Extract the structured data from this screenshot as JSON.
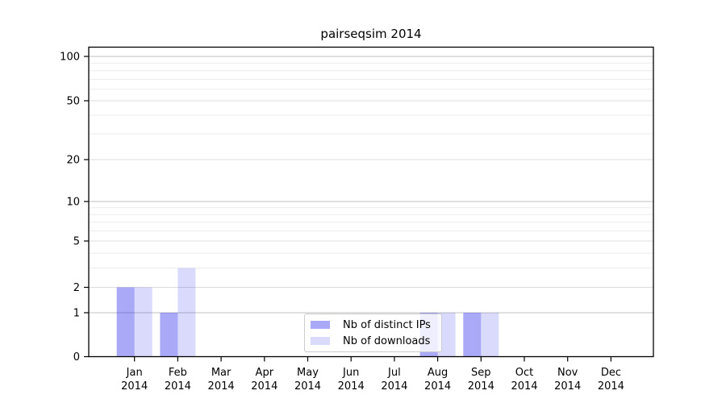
{
  "figure": {
    "title": "pairseqsim 2014"
  },
  "chart_data": {
    "type": "bar",
    "title": "pairseqsim 2014",
    "categories": [
      "Jan",
      "Feb",
      "Mar",
      "Apr",
      "May",
      "Jun",
      "Jul",
      "Aug",
      "Sep",
      "Oct",
      "Nov",
      "Dec"
    ],
    "xtick_year": "2014",
    "series": [
      {
        "name": "Nb of distinct IPs",
        "color": "rgba(10,10,235,0.35)",
        "values": [
          2,
          1,
          0,
          0,
          0,
          0,
          0,
          1,
          1,
          0,
          0,
          0
        ]
      },
      {
        "name": "Nb of downloads",
        "color": "rgba(10,10,235,0.15)",
        "values": [
          2,
          3,
          0,
          0,
          0,
          0,
          0,
          1,
          1,
          0,
          0,
          0
        ]
      }
    ],
    "yscale": "log1p",
    "yticks": [
      0,
      1,
      2,
      5,
      10,
      20,
      50,
      100
    ],
    "minor_yticks": [
      3,
      4,
      6,
      7,
      8,
      9,
      30,
      40,
      60,
      70,
      80,
      90
    ],
    "ylim": [
      0,
      115
    ],
    "grid": true,
    "legend_position": "lower-center"
  },
  "colors": {
    "bar_distinct_ips": "rgba(10,10,235,0.35)",
    "bar_downloads": "rgba(10,10,235,0.15)",
    "grid_decade": "#c2c2c2",
    "grid_major": "#dcdcdc",
    "grid_minor": "#ececec",
    "axis": "#000000",
    "tick_label": "#000000",
    "legend_border": "#cccccc",
    "legend_bg": "rgba(255,255,255,0.8)"
  }
}
